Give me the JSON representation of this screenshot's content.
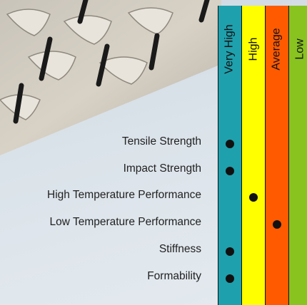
{
  "chart_data": {
    "type": "table",
    "columns": [
      "Very High",
      "High",
      "Average",
      "Low"
    ],
    "column_colors": [
      "#1fa0ad",
      "#ffff00",
      "#ff5a00",
      "#88c320"
    ],
    "rows": [
      {
        "label": "Tensile Strength",
        "rating": "Very High"
      },
      {
        "label": "Impact Strength",
        "rating": "Very High"
      },
      {
        "label": "High Temperature Performance",
        "rating": "High"
      },
      {
        "label": "Low Temperature Performance",
        "rating": "Average"
      },
      {
        "label": "Stiffness",
        "rating": "Very High"
      },
      {
        "label": "Formability",
        "rating": "Very High"
      }
    ]
  }
}
